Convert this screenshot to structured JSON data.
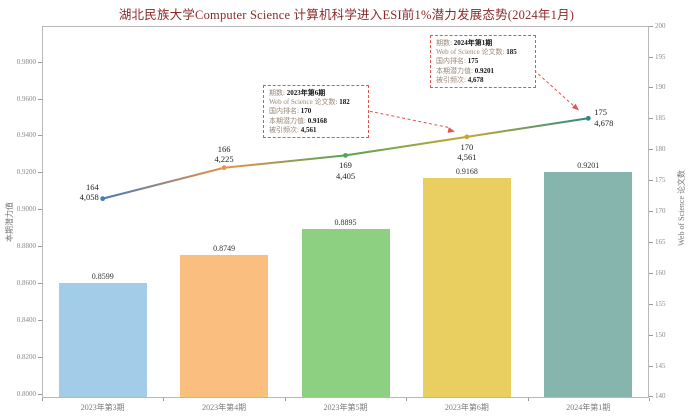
{
  "colors": {
    "title": "#8b2a2a",
    "annotation_red": "#e0564e",
    "bar_fills": [
      "#a3cce9",
      "#fabe7e",
      "#8dd081",
      "#e9cf5f",
      "#85b5ac"
    ],
    "line_point_colors": [
      "#4a7ab5",
      "#e8924a",
      "#56a556",
      "#c3a72f",
      "#2e8b84"
    ]
  },
  "chart_data": {
    "type": "bar+line combo",
    "title": "湖北民族大学Computer Science  计算机科学进入ESI前1%潜力发展态势(2024年1月)",
    "categories": [
      "2023年第3期",
      "2023年第4期",
      "2023年第5期",
      "2023年第6期",
      "2024年第1期"
    ],
    "series": [
      {
        "name": "本期潜力值",
        "type": "bar",
        "axis": "left",
        "values": [
          0.8599,
          0.8749,
          0.8895,
          0.9168,
          0.9201
        ],
        "value_labels": [
          "0.8599",
          "0.8749",
          "0.8895",
          "0.9168",
          "0.9201"
        ]
      },
      {
        "name": "Web of Science 论文数",
        "type": "line",
        "axis": "right",
        "values": [
          172,
          177,
          179,
          182,
          185
        ],
        "values_estimated_from_plot": [
          true,
          true,
          true,
          false,
          false
        ],
        "point_labels": [
          {
            "rank": "164",
            "citations": "4,058",
            "position": "left"
          },
          {
            "rank": "166",
            "citations": "4,225",
            "position": "above"
          },
          {
            "rank": "169",
            "citations": "4,405",
            "position": "below"
          },
          {
            "rank": "170",
            "citations": "4,561",
            "position": "below"
          },
          {
            "rank": "175",
            "citations": "4,678",
            "position": "right"
          }
        ]
      }
    ],
    "left_axis": {
      "label": "本期潜力值",
      "min": 0.8,
      "max": 0.98,
      "tick_step": 0.02,
      "ticks": [
        "0.9800",
        "0.9600",
        "0.9400",
        "0.9200",
        "0.9000",
        "0.8800",
        "0.8600",
        "0.8400",
        "0.8200",
        "0.8000"
      ]
    },
    "right_axis": {
      "label": "Web of Science 论文数",
      "min": 140,
      "max": 200,
      "tick_step": 5,
      "ticks": [
        "200",
        "195",
        "190",
        "185",
        "180",
        "175",
        "170",
        "165",
        "160",
        "155",
        "150",
        "145",
        "140"
      ]
    },
    "annotations": [
      {
        "id": "2024-1",
        "lines": [
          {
            "label": "期数: ",
            "value": "2024年第1期"
          },
          {
            "label": "Web of Science 论文数: ",
            "value": "185"
          },
          {
            "label": "国内排名: ",
            "value": "175"
          },
          {
            "label": "本期潜力值: ",
            "value": "0.9201"
          },
          {
            "label": "被引频次: ",
            "value": "4,678"
          }
        ]
      },
      {
        "id": "2023-6",
        "lines": [
          {
            "label": "期数: ",
            "value": "2023年第6期"
          },
          {
            "label": "Web of Science 论文数: ",
            "value": "182"
          },
          {
            "label": "国内排名: ",
            "value": "170"
          },
          {
            "label": "本期潜力值: ",
            "value": "0.9168"
          },
          {
            "label": "被引频次: ",
            "value": "4,561"
          }
        ]
      }
    ],
    "grid": false,
    "legend": "none"
  }
}
